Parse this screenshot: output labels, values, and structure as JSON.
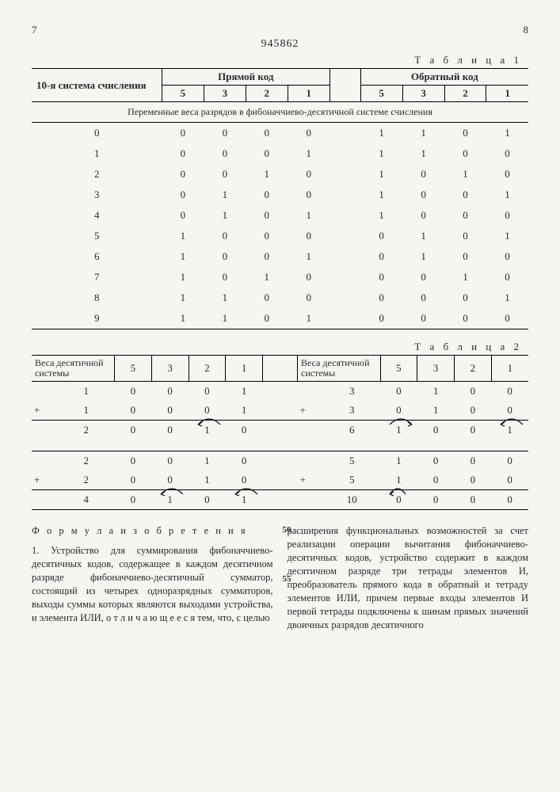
{
  "page_left": "7",
  "page_right": "8",
  "doc_number": "945862",
  "table1_label": "Т а б л и ц а 1",
  "table2_label": "Т а б л и ц а 2",
  "t1": {
    "col_decimal": "10-я система счисления",
    "col_direct": "Прямой код",
    "col_inverse": "Обратный код",
    "weights": [
      "5",
      "3",
      "2",
      "1"
    ],
    "mid_caption": "Переменные веса разрядов в фибоначчиево-десятичной системе счисления",
    "rows": [
      {
        "d": "0",
        "p": [
          "0",
          "0",
          "0",
          "0"
        ],
        "o": [
          "1",
          "1",
          "0",
          "1"
        ]
      },
      {
        "d": "1",
        "p": [
          "0",
          "0",
          "0",
          "1"
        ],
        "o": [
          "1",
          "1",
          "0",
          "0"
        ]
      },
      {
        "d": "2",
        "p": [
          "0",
          "0",
          "1",
          "0"
        ],
        "o": [
          "1",
          "0",
          "1",
          "0"
        ]
      },
      {
        "d": "3",
        "p": [
          "0",
          "1",
          "0",
          "0"
        ],
        "o": [
          "1",
          "0",
          "0",
          "1"
        ]
      },
      {
        "d": "4",
        "p": [
          "0",
          "1",
          "0",
          "1"
        ],
        "o": [
          "1",
          "0",
          "0",
          "0"
        ]
      },
      {
        "d": "5",
        "p": [
          "1",
          "0",
          "0",
          "0"
        ],
        "o": [
          "0",
          "1",
          "0",
          "1"
        ]
      },
      {
        "d": "6",
        "p": [
          "1",
          "0",
          "0",
          "1"
        ],
        "o": [
          "0",
          "1",
          "0",
          "0"
        ]
      },
      {
        "d": "7",
        "p": [
          "1",
          "0",
          "1",
          "0"
        ],
        "o": [
          "0",
          "0",
          "1",
          "0"
        ]
      },
      {
        "d": "8",
        "p": [
          "1",
          "1",
          "0",
          "0"
        ],
        "o": [
          "0",
          "0",
          "0",
          "1"
        ]
      },
      {
        "d": "9",
        "p": [
          "1",
          "1",
          "0",
          "1"
        ],
        "o": [
          "0",
          "0",
          "0",
          "0"
        ]
      }
    ]
  },
  "t2": {
    "hdr_left": "Веса десятичной системы",
    "hdr_right": "Веса десятичной системы",
    "weights": [
      "5",
      "3",
      "2",
      "1"
    ],
    "block1": {
      "a": {
        "op": "",
        "d": "1",
        "b": [
          "0",
          "0",
          "0",
          "1"
        ]
      },
      "b": {
        "op": "+",
        "d": "1",
        "b": [
          "0",
          "0",
          "0",
          "1"
        ]
      },
      "r": {
        "op": "",
        "d": "2",
        "b": [
          "0",
          "0",
          "1",
          "0"
        ],
        "arrow": "23"
      }
    },
    "block2": {
      "a": {
        "op": "",
        "d": "3",
        "b": [
          "0",
          "1",
          "0",
          "0"
        ]
      },
      "b": {
        "op": "+",
        "d": "3",
        "b": [
          "0",
          "1",
          "0",
          "0"
        ]
      },
      "r": {
        "op": "",
        "d": "6",
        "b": [
          "1",
          "0",
          "0",
          "1"
        ],
        "arrow": "03_21"
      }
    },
    "block3": {
      "a": {
        "op": "",
        "d": "2",
        "b": [
          "0",
          "0",
          "1",
          "0"
        ]
      },
      "b": {
        "op": "+",
        "d": "2",
        "b": [
          "0",
          "0",
          "1",
          "0"
        ]
      },
      "r": {
        "op": "",
        "d": "4",
        "b": [
          "0",
          "1",
          "0",
          "1"
        ],
        "arrow": "12_30"
      }
    },
    "block4": {
      "a": {
        "op": "",
        "d": "5",
        "b": [
          "1",
          "0",
          "0",
          "0"
        ]
      },
      "b": {
        "op": "+",
        "d": "5",
        "b": [
          "1",
          "0",
          "0",
          "0"
        ]
      },
      "r": {
        "op": "",
        "d": "10",
        "b": [
          "0",
          "0",
          "0",
          "0"
        ],
        "arrow": "carry"
      }
    }
  },
  "text": {
    "formula_title": "Ф о р м у л а  и з о б р е т е н и я",
    "left_col": "1. Устройство для суммирования фибоначчиево-десятичных кодов, содержащее в каждом десятичном разряде фибоначчиево-десятичный сумматор, состоящий из четырех одноразрядных сумматоров, выходы суммы которых являются выходами устройства, и элемента ИЛИ, о т л и ч а ю щ е е с я тем, что, с целью",
    "right_col": "расширения функциональных возможностей за счет реализации операции вычитания фибоначчиево-десятичных кодов, устройство содержит в каждом десятичном разряде три тетрады элементов И, преобразователь прямого кода в обратный и тетраду элементов ИЛИ, причем первые входы элементов И первой тетрады подключены к шинам прямых значений двоичных разрядов десятичного",
    "line50": "50",
    "line55": "55"
  }
}
